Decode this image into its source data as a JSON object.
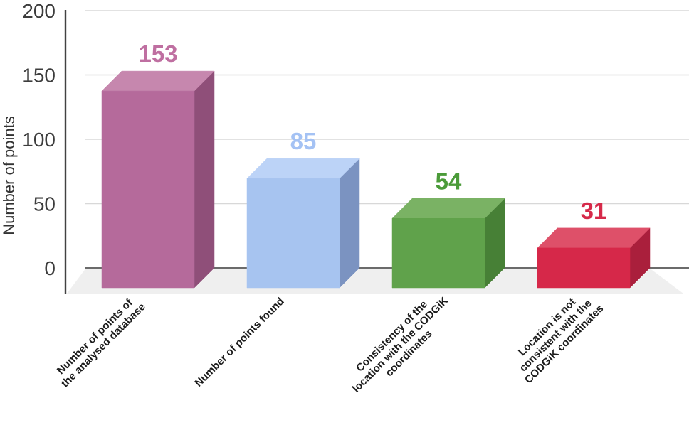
{
  "figure": {
    "background": "#ffffff"
  },
  "chart_data": {
    "type": "bar",
    "projection": "3d-column",
    "title": "",
    "xlabel": "",
    "ylabel": "Number of points",
    "ylim": [
      0,
      200
    ],
    "yticks": [
      0,
      50,
      100,
      150,
      200
    ],
    "grid": true,
    "legend": false,
    "categories": [
      "Number of points of the analysed database",
      "Number of points found",
      "Consistency of the location with the CODGiK coordinates",
      "Location is not consistent with the CODGiK coordinates"
    ],
    "category_lines": [
      [
        "Number of points of",
        "the analysed database"
      ],
      [
        "Number of points found"
      ],
      [
        "Consistency of the",
        "location with the CODGiK",
        "coordinates"
      ],
      [
        "Location is not",
        "consistent with the",
        "CODGiK coordinates"
      ]
    ],
    "values": [
      153,
      85,
      54,
      31
    ],
    "value_labels": [
      "153",
      "85",
      "54",
      "31"
    ],
    "bar_colors": [
      {
        "front": "#b56a9b",
        "top": "#c687ae",
        "side": "#8f4f79",
        "label": "#bf6fa1"
      },
      {
        "front": "#a7c4f0",
        "top": "#bcd3f7",
        "side": "#7b93c1",
        "label": "#a4c2f4"
      },
      {
        "front": "#60a24b",
        "top": "#7ab264",
        "side": "#478036",
        "label": "#4b9b39"
      },
      {
        "front": "#d62849",
        "top": "#de5069",
        "side": "#aa1f3c",
        "label": "#d62a4a"
      }
    ],
    "axis_colors": {
      "tick_text": "#3d3d3d",
      "category_text": "#1c1c1c",
      "axis_title": "#333333",
      "gridline": "#d8d8d8",
      "zero_line": "#6b6b6b",
      "axis_line": "#424242",
      "floor": "#efefef"
    }
  }
}
